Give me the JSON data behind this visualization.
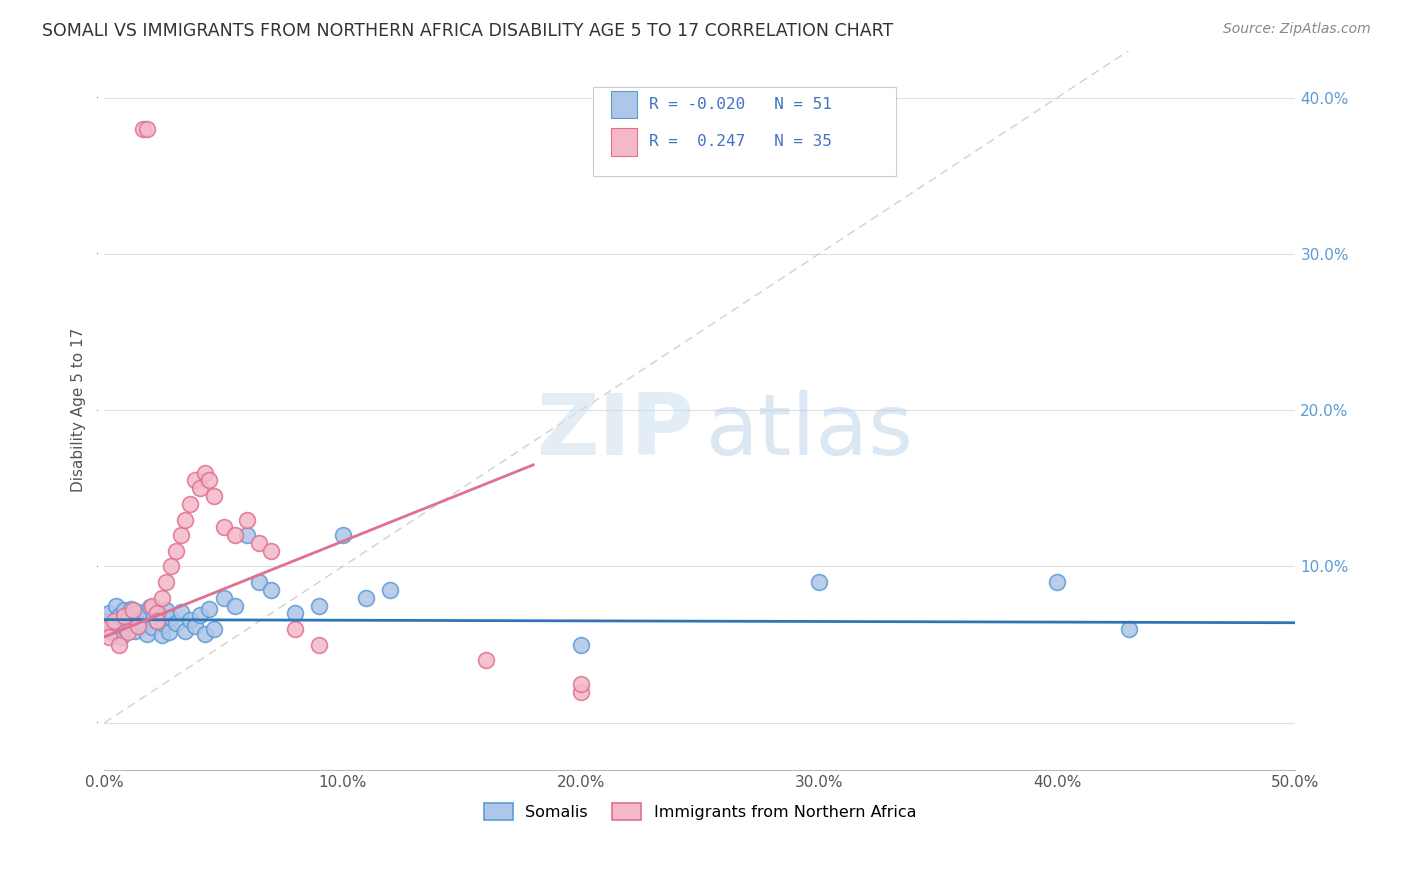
{
  "title": "SOMALI VS IMMIGRANTS FROM NORTHERN AFRICA DISABILITY AGE 5 TO 17 CORRELATION CHART",
  "source": "Source: ZipAtlas.com",
  "ylabel": "Disability Age 5 to 17",
  "xlim": [
    0.0,
    0.5
  ],
  "ylim": [
    -0.03,
    0.43
  ],
  "background_color": "#ffffff",
  "grid_color": "#e0e0e0",
  "somali_color": "#aec6e8",
  "somali_edge_color": "#5b9bd5",
  "northern_africa_color": "#f4b8c8",
  "northern_africa_edge_color": "#e07090",
  "somali_R": -0.02,
  "somali_N": 51,
  "northern_africa_R": 0.247,
  "northern_africa_N": 35,
  "somali_scatter_x": [
    0.0,
    0.002,
    0.003,
    0.004,
    0.005,
    0.006,
    0.007,
    0.008,
    0.009,
    0.01,
    0.011,
    0.012,
    0.013,
    0.014,
    0.015,
    0.016,
    0.017,
    0.018,
    0.019,
    0.02,
    0.021,
    0.022,
    0.023,
    0.024,
    0.025,
    0.026,
    0.027,
    0.028,
    0.03,
    0.032,
    0.034,
    0.036,
    0.038,
    0.04,
    0.042,
    0.044,
    0.046,
    0.05,
    0.055,
    0.06,
    0.065,
    0.07,
    0.08,
    0.09,
    0.1,
    0.11,
    0.12,
    0.2,
    0.3,
    0.4,
    0.43
  ],
  "somali_scatter_y": [
    0.065,
    0.07,
    0.058,
    0.062,
    0.075,
    0.068,
    0.055,
    0.072,
    0.06,
    0.067,
    0.073,
    0.064,
    0.059,
    0.071,
    0.066,
    0.063,
    0.069,
    0.057,
    0.074,
    0.061,
    0.068,
    0.065,
    0.07,
    0.056,
    0.063,
    0.072,
    0.058,
    0.067,
    0.064,
    0.071,
    0.059,
    0.066,
    0.062,
    0.069,
    0.057,
    0.073,
    0.06,
    0.08,
    0.075,
    0.12,
    0.09,
    0.085,
    0.07,
    0.075,
    0.12,
    0.08,
    0.085,
    0.05,
    0.09,
    0.09,
    0.06
  ],
  "northern_africa_scatter_x": [
    0.0,
    0.002,
    0.004,
    0.006,
    0.008,
    0.01,
    0.012,
    0.014,
    0.016,
    0.018,
    0.02,
    0.022,
    0.022,
    0.024,
    0.026,
    0.028,
    0.03,
    0.032,
    0.034,
    0.036,
    0.038,
    0.04,
    0.042,
    0.044,
    0.046,
    0.05,
    0.055,
    0.06,
    0.065,
    0.07,
    0.08,
    0.09,
    0.16,
    0.2,
    0.2
  ],
  "northern_africa_scatter_y": [
    0.06,
    0.055,
    0.065,
    0.05,
    0.068,
    0.058,
    0.072,
    0.062,
    0.38,
    0.38,
    0.075,
    0.07,
    0.065,
    0.08,
    0.09,
    0.1,
    0.11,
    0.12,
    0.13,
    0.14,
    0.155,
    0.15,
    0.16,
    0.155,
    0.145,
    0.125,
    0.12,
    0.13,
    0.115,
    0.11,
    0.06,
    0.05,
    0.04,
    0.02,
    0.025
  ],
  "legend_somali_label": "Somalis",
  "legend_na_label": "Immigrants from Northern Africa",
  "title_color": "#333333",
  "axis_label_color": "#555555",
  "tick_color_right": "#5b9bd5",
  "diagonal_line_color": "#cccccc",
  "somali_line_color": "#2e75b6",
  "northern_africa_line_color": "#e07090",
  "somali_line_x": [
    0.0,
    0.5
  ],
  "somali_line_y": [
    0.066,
    0.064
  ],
  "northern_africa_line_x": [
    0.0,
    0.18
  ],
  "northern_africa_line_y": [
    0.055,
    0.165
  ]
}
